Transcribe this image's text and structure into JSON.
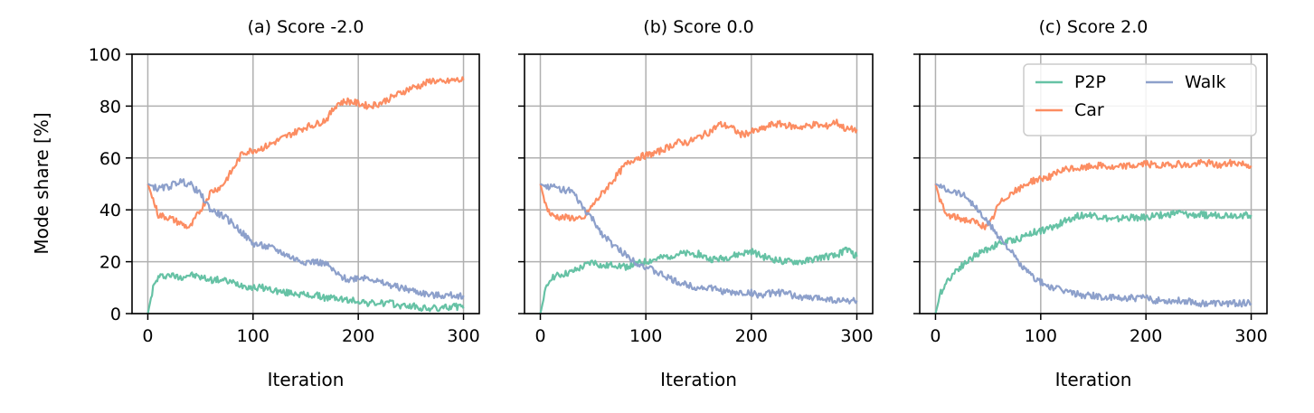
{
  "figure": {
    "ylabel": "Mode share [%]",
    "legend": {
      "location": "top-right",
      "columns": 2,
      "entries": [
        "P2P",
        "Walk",
        "Car"
      ]
    }
  },
  "colors": {
    "P2P": "#66c2a5",
    "Car": "#fc8d62",
    "Walk": "#8da0cb",
    "grid": "#b0b0b0"
  },
  "chart_data": [
    {
      "type": "line",
      "title": "(a) Score -2.0",
      "xlabel": "Iteration",
      "ylabel": "Mode share [%]",
      "xlim": [
        -15,
        315
      ],
      "ylim": [
        0,
        100
      ],
      "xticks": [
        "0",
        "100",
        "200",
        "300"
      ],
      "yticks": [
        "0",
        "20",
        "40",
        "60",
        "80",
        "100"
      ],
      "grid": true,
      "legend": false,
      "series": [
        {
          "name": "P2P",
          "x": [
            0,
            5,
            10,
            20,
            30,
            40,
            50,
            60,
            70,
            80,
            90,
            100,
            110,
            120,
            130,
            140,
            150,
            160,
            170,
            180,
            190,
            200,
            210,
            220,
            230,
            240,
            250,
            260,
            270,
            280,
            290,
            300
          ],
          "y": [
            0,
            10,
            14,
            15,
            14,
            15,
            14,
            13,
            13,
            12,
            11,
            10,
            10,
            9,
            8,
            8,
            7,
            7,
            6,
            6,
            5,
            5,
            4,
            4,
            4,
            3,
            3,
            2,
            2,
            2,
            3,
            2
          ]
        },
        {
          "name": "Car",
          "x": [
            0,
            5,
            10,
            20,
            30,
            40,
            50,
            60,
            70,
            80,
            90,
            100,
            110,
            120,
            130,
            140,
            150,
            160,
            170,
            180,
            190,
            200,
            210,
            220,
            230,
            240,
            250,
            260,
            270,
            280,
            290,
            300
          ],
          "y": [
            50,
            44,
            38,
            37,
            35,
            33,
            40,
            47,
            49,
            55,
            62,
            63,
            64,
            66,
            68,
            70,
            72,
            73,
            75,
            81,
            82,
            81,
            80,
            81,
            83,
            85,
            87,
            88,
            90,
            89,
            90,
            90
          ]
        },
        {
          "name": "Walk",
          "x": [
            0,
            5,
            10,
            20,
            30,
            40,
            50,
            60,
            70,
            80,
            90,
            100,
            110,
            120,
            130,
            140,
            150,
            160,
            170,
            180,
            190,
            200,
            210,
            220,
            230,
            240,
            250,
            260,
            270,
            280,
            290,
            300
          ],
          "y": [
            50,
            49,
            48,
            49,
            51,
            50,
            46,
            40,
            38,
            35,
            31,
            27,
            26,
            25,
            23,
            21,
            20,
            20,
            19,
            15,
            13,
            14,
            14,
            12,
            11,
            10,
            9,
            8,
            7,
            7,
            7,
            7
          ]
        }
      ]
    },
    {
      "type": "line",
      "title": "(b) Score 0.0",
      "xlabel": "Iteration",
      "xlim": [
        -15,
        315
      ],
      "ylim": [
        0,
        100
      ],
      "xticks": [
        "0",
        "100",
        "200",
        "300"
      ],
      "yticks": [
        "0",
        "20",
        "40",
        "60",
        "80",
        "100"
      ],
      "grid": true,
      "legend": false,
      "series": [
        {
          "name": "P2P",
          "x": [
            0,
            5,
            10,
            20,
            30,
            40,
            50,
            60,
            70,
            80,
            90,
            100,
            110,
            120,
            130,
            140,
            150,
            160,
            170,
            180,
            190,
            200,
            210,
            220,
            230,
            240,
            250,
            260,
            270,
            280,
            290,
            300
          ],
          "y": [
            0,
            9,
            14,
            15,
            16,
            18,
            20,
            18,
            19,
            18,
            19,
            20,
            21,
            22,
            23,
            23,
            23,
            21,
            21,
            22,
            23,
            24,
            22,
            21,
            20,
            20,
            20,
            21,
            22,
            22,
            25,
            22
          ]
        },
        {
          "name": "Car",
          "x": [
            0,
            5,
            10,
            20,
            30,
            40,
            50,
            60,
            70,
            80,
            90,
            100,
            110,
            120,
            130,
            140,
            150,
            160,
            170,
            180,
            190,
            200,
            210,
            220,
            230,
            240,
            250,
            260,
            270,
            280,
            290,
            300
          ],
          "y": [
            50,
            42,
            38,
            37,
            37,
            36,
            42,
            47,
            52,
            57,
            60,
            61,
            62,
            64,
            66,
            66,
            68,
            70,
            73,
            72,
            69,
            70,
            71,
            73,
            73,
            72,
            72,
            73,
            72,
            74,
            71,
            71
          ]
        },
        {
          "name": "Walk",
          "x": [
            0,
            5,
            10,
            20,
            30,
            40,
            50,
            60,
            70,
            80,
            90,
            100,
            110,
            120,
            130,
            140,
            150,
            160,
            170,
            180,
            190,
            200,
            210,
            220,
            230,
            240,
            250,
            260,
            270,
            280,
            290,
            300
          ],
          "y": [
            50,
            49,
            49,
            48,
            47,
            41,
            36,
            30,
            26,
            23,
            20,
            18,
            16,
            14,
            12,
            11,
            10,
            10,
            9,
            8,
            8,
            8,
            7,
            8,
            8,
            7,
            6,
            6,
            6,
            5,
            5,
            5
          ]
        }
      ]
    },
    {
      "type": "line",
      "title": "(c) Score 2.0",
      "xlabel": "Iteration",
      "xlim": [
        -15,
        315
      ],
      "ylim": [
        0,
        100
      ],
      "xticks": [
        "0",
        "100",
        "200",
        "300"
      ],
      "yticks": [
        "0",
        "20",
        "40",
        "60",
        "80",
        "100"
      ],
      "grid": true,
      "legend": true,
      "series": [
        {
          "name": "P2P",
          "x": [
            0,
            5,
            10,
            20,
            30,
            40,
            50,
            60,
            70,
            80,
            90,
            100,
            110,
            120,
            130,
            140,
            150,
            160,
            170,
            180,
            190,
            200,
            210,
            220,
            230,
            240,
            250,
            260,
            270,
            280,
            290,
            300
          ],
          "y": [
            0,
            8,
            12,
            17,
            20,
            23,
            25,
            27,
            28,
            29,
            31,
            32,
            33,
            35,
            37,
            38,
            38,
            37,
            36,
            37,
            37,
            37,
            38,
            38,
            39,
            38,
            38,
            38,
            38,
            38,
            38,
            38
          ]
        },
        {
          "name": "Car",
          "x": [
            0,
            5,
            10,
            20,
            30,
            40,
            50,
            60,
            70,
            80,
            90,
            100,
            110,
            120,
            130,
            140,
            150,
            160,
            170,
            180,
            190,
            200,
            210,
            220,
            230,
            240,
            250,
            260,
            270,
            280,
            290,
            300
          ],
          "y": [
            50,
            43,
            38,
            37,
            36,
            35,
            33,
            42,
            46,
            48,
            51,
            52,
            53,
            55,
            56,
            56,
            57,
            57,
            56,
            57,
            57,
            58,
            57,
            57,
            58,
            57,
            58,
            58,
            57,
            58,
            58,
            57
          ]
        },
        {
          "name": "Walk",
          "x": [
            0,
            5,
            10,
            20,
            30,
            40,
            50,
            60,
            70,
            80,
            90,
            100,
            110,
            120,
            130,
            140,
            150,
            160,
            170,
            180,
            190,
            200,
            210,
            220,
            230,
            240,
            250,
            260,
            270,
            280,
            290,
            300
          ],
          "y": [
            50,
            49,
            48,
            47,
            45,
            40,
            35,
            30,
            25,
            19,
            15,
            12,
            10,
            9,
            8,
            7,
            7,
            6,
            6,
            6,
            6,
            6,
            5,
            5,
            5,
            5,
            4,
            4,
            4,
            4,
            4,
            4
          ]
        }
      ]
    }
  ]
}
